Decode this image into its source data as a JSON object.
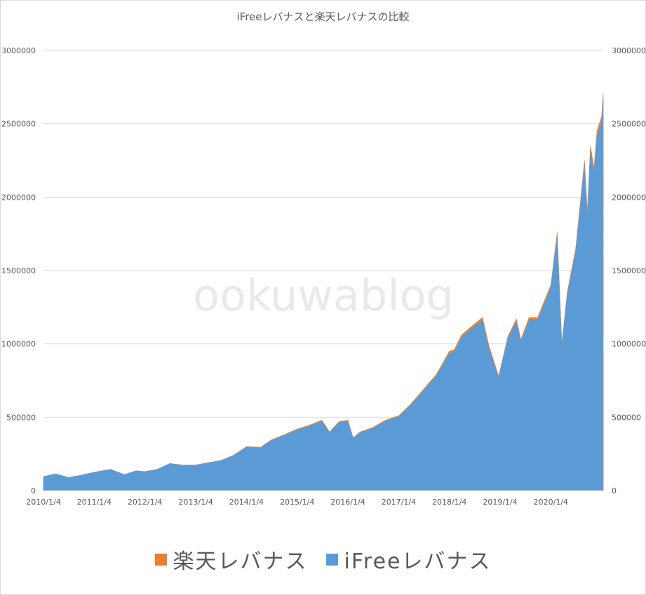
{
  "chart_data": {
    "type": "area",
    "title": "iFreeレバナスと楽天レバナスの比較",
    "watermark": "ookuwablog",
    "x_tick_labels": [
      "2010/1/4",
      "2011/1/4",
      "2012/1/4",
      "2013/1/4",
      "2014/1/4",
      "2015/1/4",
      "2016/1/4",
      "2017/1/4",
      "2018/1/4",
      "2019/1/4",
      "2020/1/4"
    ],
    "y_tick_labels": [
      "0",
      "500000",
      "1000000",
      "1500000",
      "2000000",
      "2500000",
      "3000000"
    ],
    "ylim": [
      0,
      3000000
    ],
    "xlim": [
      "2010-01-04",
      "2021-01-15"
    ],
    "grid": "horizontal",
    "legend_position": "bottom",
    "series": [
      {
        "name": "楽天レバナス",
        "color": "#ed7d31",
        "x": [
          "2010-01-04",
          "2010-04-01",
          "2010-07-01",
          "2010-10-01",
          "2011-01-04",
          "2011-05-01",
          "2011-08-10",
          "2011-11-01",
          "2012-01-04",
          "2012-04-01",
          "2012-07-01",
          "2012-10-01",
          "2013-01-04",
          "2013-04-01",
          "2013-07-01",
          "2013-10-01",
          "2014-01-04",
          "2014-04-15",
          "2014-07-01",
          "2014-10-01",
          "2015-01-04",
          "2015-04-01",
          "2015-07-01",
          "2015-08-25",
          "2015-11-01",
          "2016-01-04",
          "2016-02-11",
          "2016-04-01",
          "2016-07-01",
          "2016-10-01",
          "2017-01-04",
          "2017-04-01",
          "2017-07-01",
          "2017-10-01",
          "2018-01-04",
          "2018-02-08",
          "2018-04-01",
          "2018-06-01",
          "2018-08-30",
          "2018-10-15",
          "2018-12-24",
          "2019-03-01",
          "2019-05-01",
          "2019-06-03",
          "2019-08-01",
          "2019-10-01",
          "2020-01-04",
          "2020-02-19",
          "2020-03-23",
          "2020-05-01",
          "2020-07-01",
          "2020-09-02",
          "2020-09-23",
          "2020-10-15",
          "2020-11-10",
          "2020-12-01",
          "2021-01-04",
          "2021-01-15"
        ],
        "values": [
          95000,
          115000,
          90000,
          105000,
          125000,
          145000,
          110000,
          135000,
          130000,
          145000,
          185000,
          175000,
          175000,
          190000,
          205000,
          240000,
          300000,
          295000,
          345000,
          380000,
          420000,
          445000,
          480000,
          400000,
          470000,
          480000,
          360000,
          400000,
          430000,
          480000,
          510000,
          590000,
          690000,
          790000,
          950000,
          960000,
          1060000,
          1110000,
          1180000,
          990000,
          780000,
          1050000,
          1170000,
          1030000,
          1180000,
          1180000,
          1400000,
          1760000,
          1000000,
          1350000,
          1650000,
          2250000,
          1900000,
          2350000,
          2200000,
          2450000,
          2550000,
          2710000
        ]
      },
      {
        "name": "iFreeレバナス",
        "color": "#5b9bd5",
        "x": [
          "2010-01-04",
          "2010-04-01",
          "2010-07-01",
          "2010-10-01",
          "2011-01-04",
          "2011-05-01",
          "2011-08-10",
          "2011-11-01",
          "2012-01-04",
          "2012-04-01",
          "2012-07-01",
          "2012-10-01",
          "2013-01-04",
          "2013-04-01",
          "2013-07-01",
          "2013-10-01",
          "2014-01-04",
          "2014-04-15",
          "2014-07-01",
          "2014-10-01",
          "2015-01-04",
          "2015-04-01",
          "2015-07-01",
          "2015-08-25",
          "2015-11-01",
          "2016-01-04",
          "2016-02-11",
          "2016-04-01",
          "2016-07-01",
          "2016-10-01",
          "2017-01-04",
          "2017-04-01",
          "2017-07-01",
          "2017-10-01",
          "2018-01-04",
          "2018-02-08",
          "2018-04-01",
          "2018-06-01",
          "2018-08-30",
          "2018-10-15",
          "2018-12-24",
          "2019-03-01",
          "2019-05-01",
          "2019-06-03",
          "2019-08-01",
          "2019-10-01",
          "2020-01-04",
          "2020-02-19",
          "2020-03-23",
          "2020-05-01",
          "2020-07-01",
          "2020-09-02",
          "2020-09-23",
          "2020-10-15",
          "2020-11-10",
          "2020-12-01",
          "2021-01-04",
          "2021-01-15"
        ],
        "values": [
          94000,
          113000,
          89000,
          103000,
          123000,
          143000,
          108000,
          133000,
          128000,
          143000,
          182000,
          172000,
          172000,
          187000,
          202000,
          236000,
          295000,
          290000,
          340000,
          374000,
          413000,
          438000,
          472000,
          393000,
          462000,
          472000,
          354000,
          393000,
          423000,
          472000,
          502000,
          580000,
          679000,
          777000,
          934000,
          944000,
          1043000,
          1092000,
          1160000,
          973000,
          767000,
          1033000,
          1150000,
          1013000,
          1160000,
          1160000,
          1377000,
          1731000,
          983000,
          1328000,
          1623000,
          2213000,
          1869000,
          2311000,
          2163000,
          2409000,
          2508000,
          2665000
        ]
      }
    ]
  }
}
